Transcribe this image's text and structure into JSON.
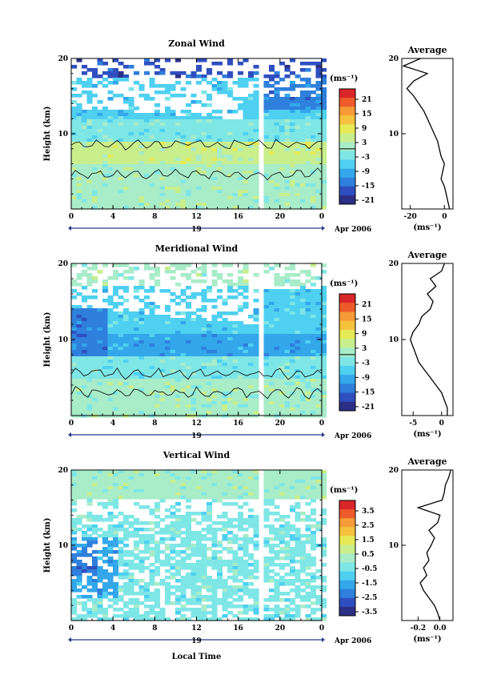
{
  "figure": {
    "xlabel": "Local Time",
    "date_label": "19",
    "date_suffix": "Apr 2006",
    "x_ticks": [
      "0",
      "4",
      "8",
      "12",
      "16",
      "20",
      "0"
    ]
  },
  "colors": {
    "scale": [
      "#2b2f86",
      "#2f4fc0",
      "#2f7fdc",
      "#33a7ea",
      "#4fd0f0",
      "#7fe6e6",
      "#a8ecc8",
      "#c9ee8c",
      "#e6ea55",
      "#f5c23e",
      "#f59a36",
      "#ee5a2a",
      "#d9262a"
    ]
  },
  "chart_data": [
    {
      "type": "heatmap",
      "title": "Zonal Wind",
      "ylabel": "Height (km)",
      "ylim": [
        0,
        20
      ],
      "xlim": [
        0,
        24
      ],
      "y_ticks": [
        "10",
        "20"
      ],
      "colorbar": {
        "label": "(ms⁻¹)",
        "ticks": [
          "21",
          "15",
          "9",
          "3",
          "-3",
          "-9",
          "-15",
          "-21"
        ]
      },
      "profile": {
        "title": "Average",
        "xlabel": "(ms⁻¹)",
        "x_ticks": [
          "-20",
          "0"
        ],
        "y_ticks": [
          "10",
          "20"
        ],
        "xlim": [
          -25,
          5
        ],
        "x": [
          3,
          2,
          1,
          0,
          -2,
          -1,
          0,
          -2,
          -3,
          -4,
          -6,
          -8,
          -10,
          -12,
          -15,
          -18,
          -22,
          -18,
          -10,
          -24,
          -14
        ],
        "y": [
          0,
          1,
          2,
          3,
          4,
          5,
          6,
          7,
          8,
          9,
          10,
          11,
          12,
          13,
          14,
          15,
          16,
          17,
          18,
          19,
          20
        ]
      }
    },
    {
      "type": "heatmap",
      "title": "Meridional Wind",
      "ylabel": "Height (km)",
      "ylim": [
        0,
        20
      ],
      "xlim": [
        0,
        24
      ],
      "y_ticks": [
        "10",
        "20"
      ],
      "colorbar": {
        "label": "(ms⁻¹)",
        "ticks": [
          "21",
          "15",
          "9",
          "3",
          "-3",
          "-9",
          "-15",
          "-21"
        ]
      },
      "profile": {
        "title": "Average",
        "xlabel": "(ms⁻¹)",
        "x_ticks": [
          "-5",
          "0"
        ],
        "y_ticks": [
          "10",
          "20"
        ],
        "xlim": [
          -7,
          2
        ],
        "x": [
          1,
          1,
          0.5,
          0,
          -1,
          -2,
          -3,
          -4,
          -4.5,
          -5,
          -5.5,
          -5,
          -4,
          -3.5,
          -2,
          -1.5,
          -2.5,
          -1,
          -2,
          0,
          0.5
        ],
        "y": [
          0,
          1,
          2,
          3,
          4,
          5,
          6,
          7,
          8,
          9,
          10,
          11,
          12,
          13,
          14,
          15,
          16,
          17,
          18,
          19,
          20
        ]
      }
    },
    {
      "type": "heatmap",
      "title": "Vertical Wind",
      "ylabel": "Height (km)",
      "ylim": [
        0,
        20
      ],
      "xlim": [
        0,
        24
      ],
      "y_ticks": [
        "10",
        "20"
      ],
      "colorbar": {
        "label": "(ms⁻¹)",
        "ticks": [
          "3.5",
          "2.5",
          "1.5",
          "0.5",
          "-0.5",
          "-1.5",
          "-2.5",
          "-3.5"
        ]
      },
      "profile": {
        "title": "Average",
        "xlabel": "(ms⁻¹)",
        "x_ticks": [
          "-0.2",
          "0.0"
        ],
        "y_ticks": [
          "10",
          "20"
        ],
        "xlim": [
          -0.35,
          0.12
        ],
        "x": [
          0,
          -0.02,
          -0.05,
          -0.1,
          -0.15,
          -0.18,
          -0.12,
          -0.15,
          -0.1,
          -0.12,
          -0.08,
          -0.05,
          -0.1,
          -0.02,
          0,
          -0.2,
          0.02,
          0.04,
          0.05,
          0.08,
          0.1
        ],
        "y": [
          0,
          1,
          2,
          3,
          4,
          5,
          6,
          7,
          8,
          9,
          10,
          11,
          12,
          13,
          14,
          15,
          16,
          17,
          18,
          19,
          20
        ]
      }
    }
  ]
}
